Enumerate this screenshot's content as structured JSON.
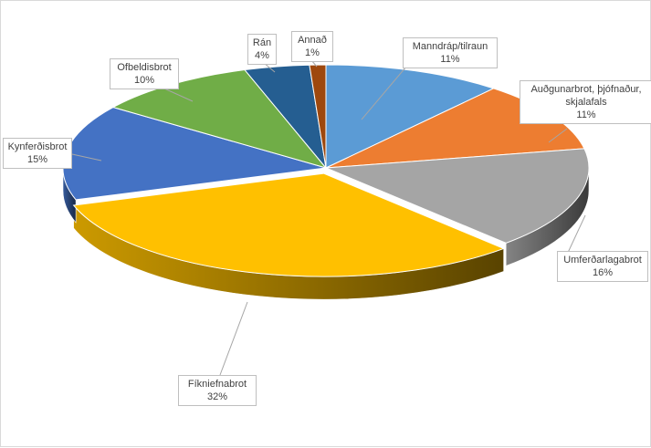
{
  "chart_data": {
    "type": "pie",
    "title": "",
    "slices": [
      {
        "label": "Manndráp/tilraun",
        "value": 11,
        "percent_label": "11%",
        "color": "#5b9bd5"
      },
      {
        "label": "Auðgunarbrot,  þjófnaður, skjalafals",
        "value": 11,
        "percent_label": "11%",
        "color": "#ed7d31"
      },
      {
        "label": "Umferðarlagabrot",
        "value": 16,
        "percent_label": "16%",
        "color": "#a5a5a5"
      },
      {
        "label": "Fíkniefnabrot",
        "value": 32,
        "percent_label": "32%",
        "color": "#ffc000"
      },
      {
        "label": "Kynferðisbrot",
        "value": 15,
        "percent_label": "15%",
        "color": "#4472c4"
      },
      {
        "label": "Ofbeldisbrot",
        "value": 10,
        "percent_label": "10%",
        "color": "#70ad47"
      },
      {
        "label": "Rán",
        "value": 4,
        "percent_label": "4%",
        "color": "#255e91"
      },
      {
        "label": "Annað",
        "value": 1,
        "percent_label": "1%",
        "color": "#9e480e"
      }
    ],
    "legend": "none",
    "style": "3d-pie-with-callout-labels"
  }
}
